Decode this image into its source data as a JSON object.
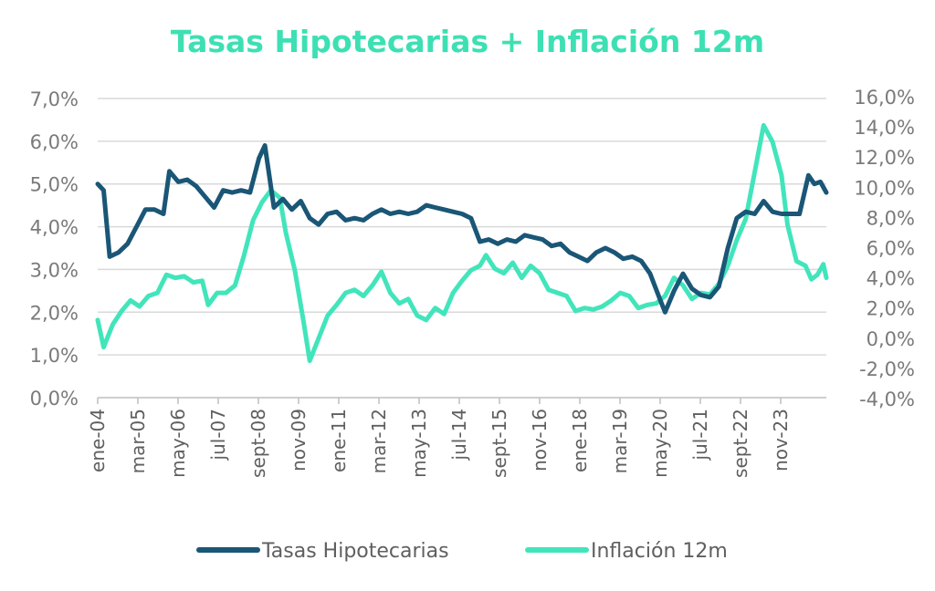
{
  "chart_data": {
    "type": "line",
    "title": "Tasas Hipotecarias + Inflación 12m",
    "x_tick_labels": [
      "ene-04",
      "mar-05",
      "may-06",
      "jul-07",
      "sept-08",
      "nov-09",
      "ene-11",
      "mar-12",
      "may-13",
      "jul-14",
      "sept-15",
      "nov-16",
      "ene-18",
      "mar-19",
      "may-20",
      "jul-21",
      "sept-22",
      "nov-23"
    ],
    "y_left": {
      "ticks": [
        "0,0%",
        "1,0%",
        "2,0%",
        "3,0%",
        "4,0%",
        "5,0%",
        "6,0%",
        "7,0%"
      ],
      "range": [
        0,
        7
      ]
    },
    "y_right": {
      "ticks": [
        "-4,0%",
        "-2,0%",
        "0,0%",
        "2,0%",
        "4,0%",
        "6,0%",
        "8,0%",
        "10,0%",
        "12,0%",
        "14,0%",
        "16,0%"
      ],
      "range": [
        -4,
        16
      ]
    },
    "x_range": [
      "2004-01",
      "2024-05"
    ],
    "grid": true,
    "legend_position": "bottom",
    "colors": {
      "title": "#3de0b3",
      "tasas": "#1a5676",
      "inflacion": "#42e5bb",
      "grid": "#d9d9d9",
      "axis": "#bfbfbf"
    },
    "series": [
      {
        "name": "Tasas Hipotecarias",
        "axis": "left",
        "points": [
          [
            "2004-01",
            5.0
          ],
          [
            "2004-03",
            4.85
          ],
          [
            "2004-05",
            3.3
          ],
          [
            "2004-08",
            3.4
          ],
          [
            "2004-11",
            3.6
          ],
          [
            "2005-02",
            4.0
          ],
          [
            "2005-05",
            4.4
          ],
          [
            "2005-08",
            4.4
          ],
          [
            "2005-11",
            4.3
          ],
          [
            "2006-01",
            5.3
          ],
          [
            "2006-04",
            5.05
          ],
          [
            "2006-07",
            5.1
          ],
          [
            "2006-10",
            4.95
          ],
          [
            "2007-01",
            4.7
          ],
          [
            "2007-04",
            4.45
          ],
          [
            "2007-07",
            4.85
          ],
          [
            "2007-10",
            4.8
          ],
          [
            "2008-01",
            4.85
          ],
          [
            "2008-04",
            4.8
          ],
          [
            "2008-07",
            5.6
          ],
          [
            "2008-09",
            5.9
          ],
          [
            "2008-12",
            4.45
          ],
          [
            "2009-03",
            4.65
          ],
          [
            "2009-06",
            4.4
          ],
          [
            "2009-09",
            4.6
          ],
          [
            "2009-12",
            4.2
          ],
          [
            "2010-03",
            4.05
          ],
          [
            "2010-06",
            4.3
          ],
          [
            "2010-09",
            4.35
          ],
          [
            "2010-12",
            4.15
          ],
          [
            "2011-03",
            4.2
          ],
          [
            "2011-06",
            4.15
          ],
          [
            "2011-09",
            4.3
          ],
          [
            "2011-12",
            4.4
          ],
          [
            "2012-03",
            4.3
          ],
          [
            "2012-06",
            4.35
          ],
          [
            "2012-09",
            4.3
          ],
          [
            "2012-12",
            4.35
          ],
          [
            "2013-03",
            4.5
          ],
          [
            "2013-06",
            4.45
          ],
          [
            "2013-09",
            4.4
          ],
          [
            "2013-12",
            4.35
          ],
          [
            "2014-03",
            4.3
          ],
          [
            "2014-06",
            4.2
          ],
          [
            "2014-09",
            3.65
          ],
          [
            "2014-12",
            3.7
          ],
          [
            "2015-03",
            3.6
          ],
          [
            "2015-06",
            3.7
          ],
          [
            "2015-09",
            3.65
          ],
          [
            "2015-12",
            3.8
          ],
          [
            "2016-03",
            3.75
          ],
          [
            "2016-06",
            3.7
          ],
          [
            "2016-09",
            3.55
          ],
          [
            "2016-12",
            3.6
          ],
          [
            "2017-03",
            3.4
          ],
          [
            "2017-06",
            3.3
          ],
          [
            "2017-09",
            3.2
          ],
          [
            "2017-12",
            3.4
          ],
          [
            "2018-03",
            3.5
          ],
          [
            "2018-06",
            3.4
          ],
          [
            "2018-09",
            3.25
          ],
          [
            "2018-12",
            3.3
          ],
          [
            "2019-03",
            3.2
          ],
          [
            "2019-06",
            2.9
          ],
          [
            "2019-09",
            2.35
          ],
          [
            "2019-11",
            2.0
          ],
          [
            "2020-02",
            2.5
          ],
          [
            "2020-05",
            2.9
          ],
          [
            "2020-08",
            2.55
          ],
          [
            "2020-11",
            2.4
          ],
          [
            "2021-02",
            2.35
          ],
          [
            "2021-05",
            2.6
          ],
          [
            "2021-08",
            3.5
          ],
          [
            "2021-11",
            4.2
          ],
          [
            "2022-02",
            4.35
          ],
          [
            "2022-05",
            4.3
          ],
          [
            "2022-08",
            4.6
          ],
          [
            "2022-11",
            4.35
          ],
          [
            "2023-02",
            4.3
          ],
          [
            "2023-05",
            4.3
          ],
          [
            "2023-08",
            4.3
          ],
          [
            "2023-11",
            5.2
          ],
          [
            "2024-01",
            5.0
          ],
          [
            "2024-03",
            5.05
          ],
          [
            "2024-05",
            4.8
          ]
        ]
      },
      {
        "name": "Inflación 12m",
        "axis": "right",
        "points": [
          [
            "2004-01",
            1.2
          ],
          [
            "2004-03",
            -0.6
          ],
          [
            "2004-06",
            0.9
          ],
          [
            "2004-09",
            1.8
          ],
          [
            "2004-12",
            2.5
          ],
          [
            "2005-03",
            2.1
          ],
          [
            "2005-06",
            2.8
          ],
          [
            "2005-09",
            3.0
          ],
          [
            "2005-12",
            4.2
          ],
          [
            "2006-03",
            4.0
          ],
          [
            "2006-06",
            4.1
          ],
          [
            "2006-09",
            3.7
          ],
          [
            "2006-12",
            3.8
          ],
          [
            "2007-02",
            2.2
          ],
          [
            "2007-05",
            3.0
          ],
          [
            "2007-08",
            3.0
          ],
          [
            "2007-11",
            3.5
          ],
          [
            "2008-02",
            5.5
          ],
          [
            "2008-05",
            7.8
          ],
          [
            "2008-08",
            9.0
          ],
          [
            "2008-11",
            9.8
          ],
          [
            "2009-02",
            9.3
          ],
          [
            "2009-04",
            7.0
          ],
          [
            "2009-07",
            4.5
          ],
          [
            "2009-10",
            1.0
          ],
          [
            "2009-12",
            -1.5
          ],
          [
            "2010-03",
            0.0
          ],
          [
            "2010-06",
            1.5
          ],
          [
            "2010-09",
            2.2
          ],
          [
            "2010-12",
            3.0
          ],
          [
            "2011-03",
            3.2
          ],
          [
            "2011-06",
            2.8
          ],
          [
            "2011-09",
            3.5
          ],
          [
            "2011-12",
            4.4
          ],
          [
            "2012-03",
            3.0
          ],
          [
            "2012-06",
            2.3
          ],
          [
            "2012-09",
            2.6
          ],
          [
            "2012-12",
            1.5
          ],
          [
            "2013-03",
            1.2
          ],
          [
            "2013-06",
            2.0
          ],
          [
            "2013-09",
            1.6
          ],
          [
            "2013-12",
            3.0
          ],
          [
            "2014-03",
            3.8
          ],
          [
            "2014-06",
            4.5
          ],
          [
            "2014-09",
            4.8
          ],
          [
            "2014-11",
            5.5
          ],
          [
            "2015-02",
            4.6
          ],
          [
            "2015-05",
            4.3
          ],
          [
            "2015-08",
            5.0
          ],
          [
            "2015-11",
            4.0
          ],
          [
            "2016-02",
            4.8
          ],
          [
            "2016-05",
            4.3
          ],
          [
            "2016-08",
            3.2
          ],
          [
            "2016-11",
            3.0
          ],
          [
            "2017-02",
            2.8
          ],
          [
            "2017-05",
            1.8
          ],
          [
            "2017-08",
            2.0
          ],
          [
            "2017-11",
            1.9
          ],
          [
            "2018-02",
            2.1
          ],
          [
            "2018-05",
            2.5
          ],
          [
            "2018-08",
            3.0
          ],
          [
            "2018-11",
            2.8
          ],
          [
            "2019-02",
            2.0
          ],
          [
            "2019-05",
            2.2
          ],
          [
            "2019-08",
            2.3
          ],
          [
            "2019-11",
            2.8
          ],
          [
            "2020-02",
            4.0
          ],
          [
            "2020-05",
            3.5
          ],
          [
            "2020-08",
            2.6
          ],
          [
            "2020-11",
            3.0
          ],
          [
            "2021-02",
            2.9
          ],
          [
            "2021-05",
            3.6
          ],
          [
            "2021-08",
            4.8
          ],
          [
            "2021-11",
            6.5
          ],
          [
            "2022-02",
            7.9
          ],
          [
            "2022-05",
            11.0
          ],
          [
            "2022-08",
            14.1
          ],
          [
            "2022-11",
            13.0
          ],
          [
            "2023-02",
            10.8
          ],
          [
            "2023-04",
            7.5
          ],
          [
            "2023-07",
            5.1
          ],
          [
            "2023-10",
            4.8
          ],
          [
            "2023-12",
            3.9
          ],
          [
            "2024-02",
            4.2
          ],
          [
            "2024-04",
            4.9
          ],
          [
            "2024-05",
            4.0
          ]
        ]
      }
    ]
  }
}
